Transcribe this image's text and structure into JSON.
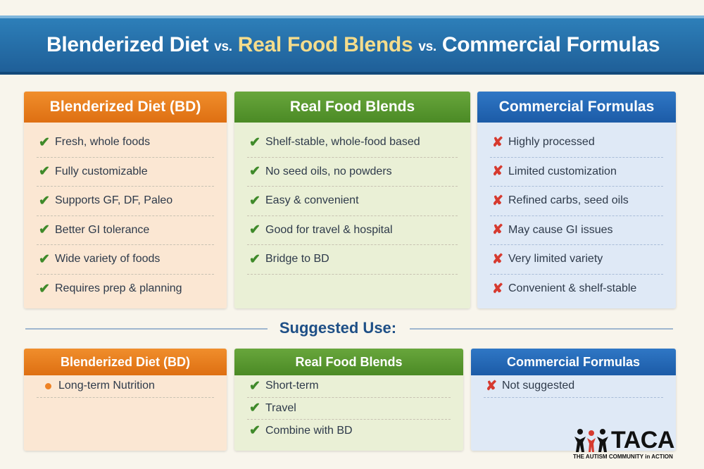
{
  "title": {
    "part1": "Blenderized Diet",
    "vs1": "vs.",
    "part2": "Real Food Blends",
    "vs2": "vs.",
    "part3": "Commercial Formulas"
  },
  "colors": {
    "orange": "#e9771b",
    "green": "#56952f",
    "blue": "#2466b3",
    "check": "#3f8a2a",
    "cross": "#d63a2f"
  },
  "columns": [
    {
      "header": "Blenderized Diet (BD)",
      "icon": "check-icon",
      "items": [
        "Fresh, whole foods",
        "Fully customizable",
        "Supports GF, DF, Paleo",
        "Better GI tolerance",
        "Wide variety of foods",
        "Requires prep & planning"
      ]
    },
    {
      "header": "Real Food Blends",
      "icon": "check-icon",
      "items": [
        "Shelf-stable, whole-food based",
        "No seed oils, no powders",
        "Easy & convenient",
        "Good for travel & hospital",
        "Bridge to BD"
      ]
    },
    {
      "header": "Commercial Formulas",
      "icon": "cross-icon",
      "items": [
        "Highly processed",
        "Limited customization",
        "Refined carbs, seed oils",
        "May cause GI issues",
        "Very limited variety",
        "Convenient & shelf-stable"
      ]
    }
  ],
  "suggested": {
    "title": "Suggested Use:",
    "columns": [
      {
        "header": "Blenderized Diet (BD)",
        "icon": "bullet-icon",
        "items": [
          "Long-term Nutrition"
        ]
      },
      {
        "header": "Real Food Blends",
        "icon": "check-icon",
        "items": [
          "Short-term",
          "Travel",
          "Combine with BD"
        ]
      },
      {
        "header": "Commercial Formulas",
        "icon": "cross-icon",
        "items": [
          "Not suggested"
        ]
      }
    ]
  },
  "logo": {
    "name": "TACA",
    "tagline": "THE AUTISM COMMUNITY in ACTION"
  }
}
